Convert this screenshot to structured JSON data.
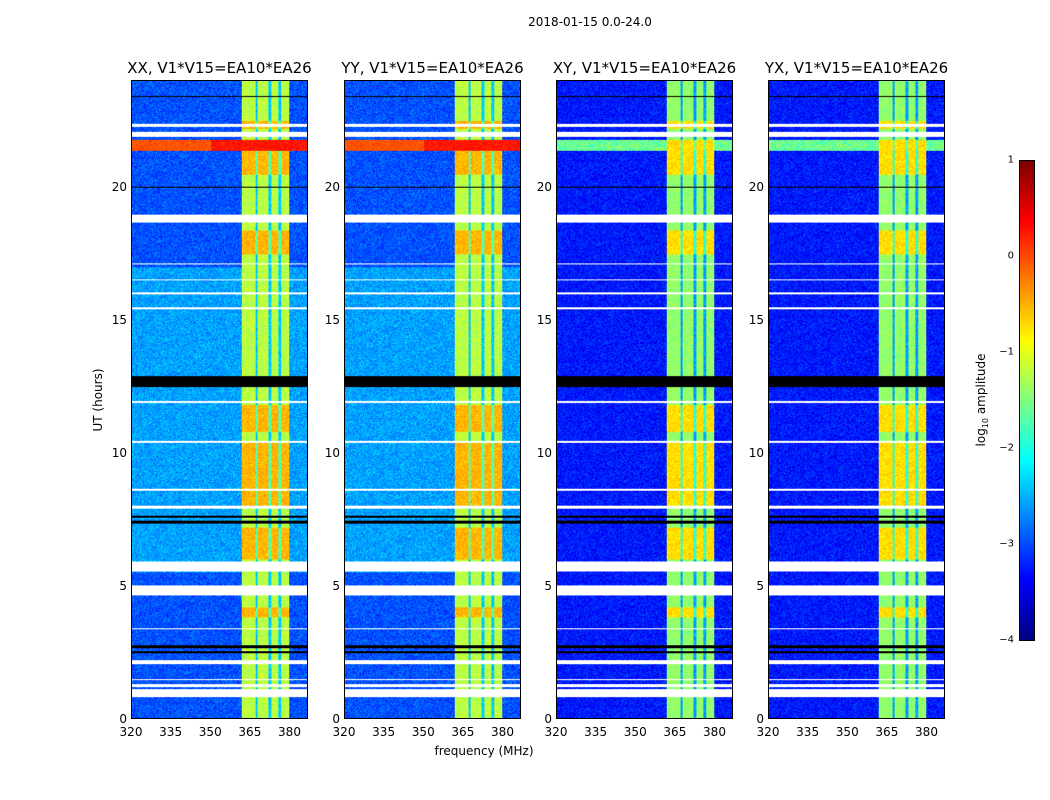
{
  "chart_data": {
    "type": "heatmap",
    "suptitle": "2018-01-15 0.0-24.0",
    "xlabel": "frequency (MHz)",
    "ylabel": "UT (hours)",
    "xlim": [
      320,
      387
    ],
    "ylim": [
      0,
      24
    ],
    "xticks": [
      "320",
      "335",
      "350",
      "365",
      "380"
    ],
    "xtick_values": [
      320,
      335,
      350,
      365,
      380
    ],
    "yticks": [
      "0",
      "5",
      "10",
      "15",
      "20"
    ],
    "ytick_values": [
      0,
      5,
      10,
      15,
      20
    ],
    "panels": [
      {
        "title": "XX, V1*V15=EA10*EA26",
        "base": -3.0,
        "parallel": true
      },
      {
        "title": "YY, V1*V15=EA10*EA26",
        "base": -3.0,
        "parallel": true
      },
      {
        "title": "XY, V1*V15=EA10*EA26",
        "base": -3.3,
        "parallel": false
      },
      {
        "title": "YX, V1*V15=EA10*EA26",
        "base": -3.3,
        "parallel": false
      }
    ],
    "colorbar": {
      "label": "log10 amplitude",
      "label_main": "log",
      "label_sub": "10",
      "label_rest": " amplitude",
      "range": [
        -4,
        1
      ],
      "ticks": [
        "1",
        "0",
        "−1",
        "−2",
        "−3",
        "−4"
      ],
      "tick_values": [
        1,
        0,
        -1,
        -2,
        -3,
        -4
      ],
      "colormap": "jet"
    },
    "flagged_intervals_hours": [
      [
        0.8,
        1.1
      ],
      [
        1.2,
        1.3
      ],
      [
        1.45,
        1.5
      ],
      [
        2.05,
        2.2
      ],
      [
        3.35,
        3.4
      ],
      [
        4.65,
        5.0
      ],
      [
        5.55,
        5.9
      ],
      [
        7.9,
        8.0
      ],
      [
        8.6,
        8.65
      ],
      [
        10.4,
        10.45
      ],
      [
        11.9,
        11.95
      ],
      [
        15.4,
        15.5
      ],
      [
        16.0,
        16.05
      ],
      [
        16.5,
        16.55
      ],
      [
        17.1,
        17.15
      ],
      [
        18.7,
        19.0
      ],
      [
        21.9,
        22.1
      ],
      [
        22.3,
        22.4
      ]
    ],
    "no_data_intervals_hours": [
      [
        2.45,
        2.55
      ],
      [
        2.65,
        2.75
      ],
      [
        7.35,
        7.45
      ],
      [
        7.55,
        7.65
      ],
      [
        12.5,
        12.9
      ],
      [
        20.0,
        20.05
      ],
      [
        23.4,
        23.45
      ]
    ],
    "rfi_band_mhz": [
      362,
      380
    ],
    "rfi_channel_gaps_mhz": [
      367.5,
      372.5,
      376.5
    ],
    "rfi_band_level": -1.2,
    "strong_rfi_intervals_hours": [
      [
        3.8,
        4.2
      ],
      [
        6.0,
        7.2
      ],
      [
        7.9,
        10.4
      ],
      [
        10.8,
        11.8
      ],
      [
        17.5,
        18.4
      ],
      [
        20.5,
        21.8
      ],
      [
        22.2,
        22.5
      ]
    ],
    "broadband_burst_hours": [
      21.4,
      21.8
    ],
    "broadband_burst_level": 0.3,
    "elevated_baseline_hours": [
      5.5,
      17.0
    ]
  }
}
